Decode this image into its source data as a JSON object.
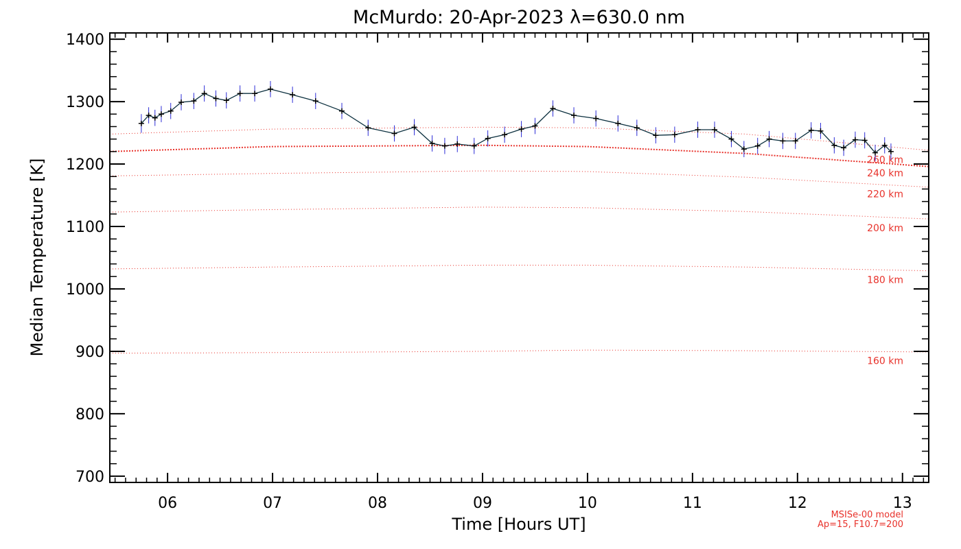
{
  "chart_data": {
    "type": "line",
    "title": "McMurdo: 20-Apr-2023 λ=630.0 nm",
    "xlabel": "Time [Hours UT]",
    "ylabel": "Median Temperature [K]",
    "xlim": [
      5.45,
      13.25
    ],
    "ylim": [
      690,
      1410
    ],
    "xticks": [
      6,
      7,
      8,
      9,
      10,
      11,
      12,
      13
    ],
    "xtick_labels": [
      "06",
      "07",
      "08",
      "09",
      "10",
      "11",
      "12",
      "13"
    ],
    "yticks": [
      700,
      800,
      900,
      1000,
      1100,
      1200,
      1300,
      1400
    ],
    "ytick_labels": [
      "700",
      "800",
      "900",
      "1000",
      "1100",
      "1200",
      "1300",
      "1400"
    ],
    "grid": false,
    "series": [
      {
        "name": "Median Temperature",
        "x": [
          5.75,
          5.82,
          5.88,
          5.94,
          6.03,
          6.13,
          6.25,
          6.35,
          6.46,
          6.56,
          6.69,
          6.83,
          6.98,
          7.19,
          7.41,
          7.66,
          7.91,
          8.16,
          8.35,
          8.52,
          8.64,
          8.76,
          8.92,
          9.05,
          9.21,
          9.37,
          9.5,
          9.67,
          9.87,
          10.08,
          10.29,
          10.47,
          10.65,
          10.83,
          11.05,
          11.21,
          11.37,
          11.49,
          11.62,
          11.73,
          11.86,
          11.98,
          12.13,
          12.22,
          12.35,
          12.44,
          12.55,
          12.64,
          12.74,
          12.83,
          12.89
        ],
        "y": [
          1265,
          1278,
          1274,
          1280,
          1285,
          1299,
          1301,
          1313,
          1305,
          1302,
          1313,
          1313,
          1320,
          1311,
          1301,
          1285,
          1258,
          1249,
          1259,
          1233,
          1229,
          1232,
          1229,
          1241,
          1247,
          1256,
          1261,
          1289,
          1278,
          1273,
          1265,
          1258,
          1246,
          1247,
          1255,
          1255,
          1240,
          1224,
          1229,
          1240,
          1237,
          1237,
          1254,
          1253,
          1230,
          1226,
          1239,
          1238,
          1218,
          1230,
          1220
        ],
        "err": [
          15,
          13,
          13,
          13,
          13,
          13,
          13,
          13,
          13,
          13,
          13,
          13,
          13,
          13,
          13,
          13,
          13,
          13,
          13,
          13,
          13,
          13,
          13,
          13,
          13,
          13,
          13,
          13,
          13,
          13,
          13,
          13,
          13,
          13,
          13,
          13,
          13,
          13,
          13,
          13,
          13,
          13,
          13,
          13,
          13,
          13,
          13,
          13,
          13,
          13,
          13
        ]
      }
    ],
    "model_curves": [
      {
        "label": "160 km",
        "x": [
          5.45,
          7.0,
          9.0,
          10.0,
          11.5,
          13.25
        ],
        "y": [
          897,
          898,
          900,
          902,
          901,
          899
        ]
      },
      {
        "label": "180 km",
        "x": [
          5.45,
          7.0,
          9.0,
          10.0,
          11.5,
          13.25
        ],
        "y": [
          1032,
          1035,
          1038,
          1038,
          1035,
          1029
        ]
      },
      {
        "label": "200 km",
        "x": [
          5.45,
          7.0,
          9.0,
          10.0,
          11.5,
          13.25
        ],
        "y": [
          1123,
          1127,
          1131,
          1130,
          1124,
          1112
        ]
      },
      {
        "label": "220 km",
        "x": [
          5.45,
          7.0,
          9.0,
          10.0,
          11.5,
          13.25
        ],
        "y": [
          1181,
          1185,
          1189,
          1188,
          1179,
          1163
        ]
      },
      {
        "label": "240 km",
        "x": [
          5.45,
          7.0,
          9.0,
          10.0,
          11.5,
          13.25
        ],
        "y": [
          1220,
          1228,
          1230,
          1228,
          1217,
          1196
        ]
      },
      {
        "label": "260 km",
        "x": [
          5.45,
          7.0,
          9.0,
          10.0,
          11.5,
          13.25
        ],
        "y": [
          1248,
          1256,
          1259,
          1258,
          1248,
          1222
        ]
      }
    ],
    "model_labels": [
      {
        "text": "260 km",
        "at_y": 1207
      },
      {
        "text": "240 km",
        "at_y": 1186
      },
      {
        "text": "220 km",
        "at_y": 1152
      },
      {
        "text": "200 km",
        "at_y": 1098
      },
      {
        "text": "180 km",
        "at_y": 1015
      },
      {
        "text": "160 km",
        "at_y": 885
      }
    ],
    "model_note": [
      "MSISe-00 model",
      "Ap=15, F10.7=200"
    ],
    "colors": {
      "line": "#0b2f3e",
      "marker": "#000000",
      "errorbar": "#2b2bd6",
      "model": "#e8312a",
      "axis": "#000000"
    }
  }
}
